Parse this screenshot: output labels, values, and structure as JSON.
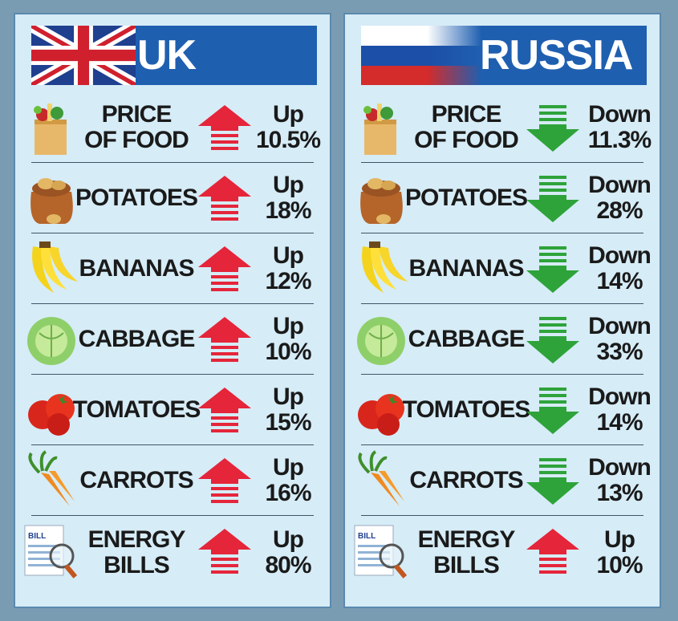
{
  "colors": {
    "up": "#e5253a",
    "down": "#2ea33a",
    "header_bg": "#1f5fb0",
    "panel_bg": "#d6ecf7"
  },
  "uk": {
    "title": "UK",
    "flag": "union-jack",
    "rows": [
      {
        "icon": "grocery-bag-icon",
        "label_line1": "PRICE",
        "label_line2": "OF FOOD",
        "direction": "up",
        "change_word": "Up",
        "change_value": "10.5%"
      },
      {
        "icon": "potato-sack-icon",
        "label_line1": "POTATOES",
        "label_line2": "",
        "direction": "up",
        "change_word": "Up",
        "change_value": "18%"
      },
      {
        "icon": "banana-icon",
        "label_line1": "BANANAS",
        "label_line2": "",
        "direction": "up",
        "change_word": "Up",
        "change_value": "12%"
      },
      {
        "icon": "cabbage-icon",
        "label_line1": "CABBAGE",
        "label_line2": "",
        "direction": "up",
        "change_word": "Up",
        "change_value": "10%"
      },
      {
        "icon": "tomato-icon",
        "label_line1": "TOMATOES",
        "label_line2": "",
        "direction": "up",
        "change_word": "Up",
        "change_value": "15%"
      },
      {
        "icon": "carrot-icon",
        "label_line1": "CARROTS",
        "label_line2": "",
        "direction": "up",
        "change_word": "Up",
        "change_value": "16%"
      },
      {
        "icon": "bill-magnifier-icon",
        "label_line1": "ENERGY",
        "label_line2": "BILLS",
        "direction": "up",
        "change_word": "Up",
        "change_value": "80%"
      }
    ]
  },
  "russia": {
    "title": "RUSSIA",
    "flag": "russian-tricolour",
    "rows": [
      {
        "icon": "grocery-bag-icon",
        "label_line1": "PRICE",
        "label_line2": "OF FOOD",
        "direction": "down",
        "change_word": "Down",
        "change_value": "11.3%"
      },
      {
        "icon": "potato-sack-icon",
        "label_line1": "POTATOES",
        "label_line2": "",
        "direction": "down",
        "change_word": "Down",
        "change_value": "28%"
      },
      {
        "icon": "banana-icon",
        "label_line1": "BANANAS",
        "label_line2": "",
        "direction": "down",
        "change_word": "Down",
        "change_value": "14%"
      },
      {
        "icon": "cabbage-icon",
        "label_line1": "CABBAGE",
        "label_line2": "",
        "direction": "down",
        "change_word": "Down",
        "change_value": "33%"
      },
      {
        "icon": "tomato-icon",
        "label_line1": "TOMATOES",
        "label_line2": "",
        "direction": "down",
        "change_word": "Down",
        "change_value": "14%"
      },
      {
        "icon": "carrot-icon",
        "label_line1": "CARROTS",
        "label_line2": "",
        "direction": "down",
        "change_word": "Down",
        "change_value": "13%"
      },
      {
        "icon": "bill-magnifier-icon",
        "label_line1": "ENERGY",
        "label_line2": "BILLS",
        "direction": "up",
        "change_word": "Up",
        "change_value": "10%"
      }
    ]
  }
}
